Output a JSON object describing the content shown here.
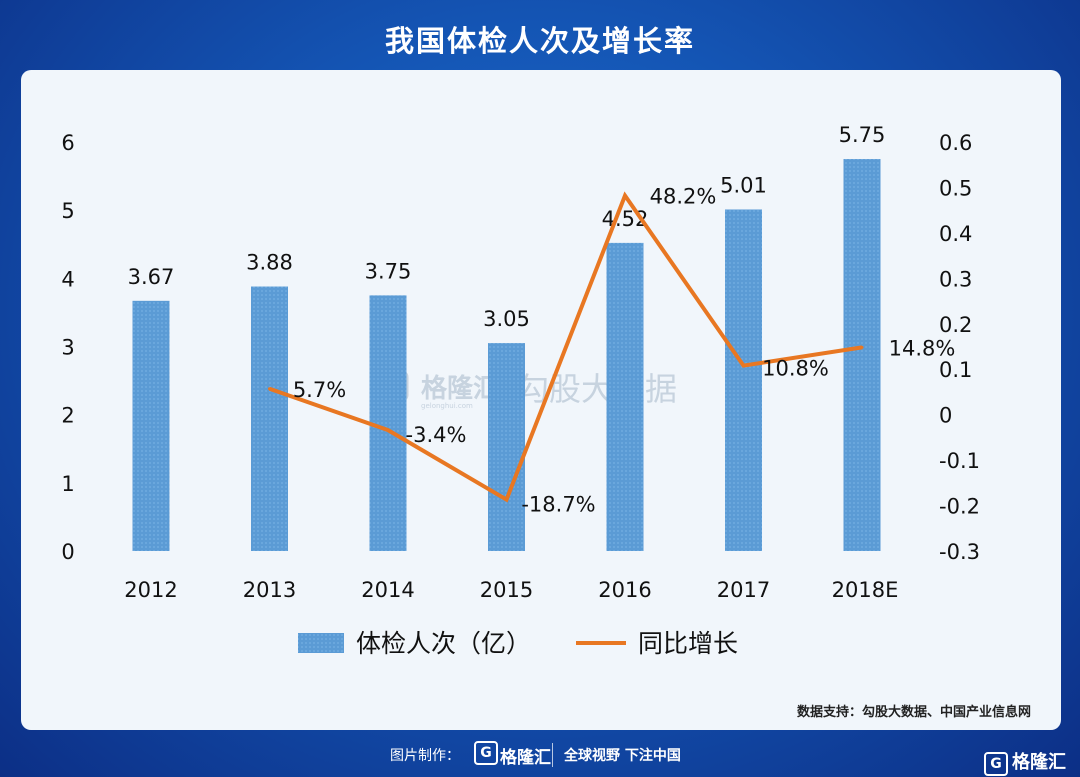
{
  "title": "我国体检人次及增长率",
  "source": "数据支持：勾股大数据、中国产业信息网",
  "watermark": {
    "brand": "格隆汇",
    "sub": "勾股大数据",
    "url": "gelonghui.com"
  },
  "footer": {
    "made_by": "图片制作：",
    "logo_glyph": "G",
    "brand": "格隆汇",
    "slogan": "全球视野 下注中国",
    "corner_brand": "格隆汇"
  },
  "colors": {
    "bar": "#5b9bd5",
    "line": "#e87722",
    "accent": "#1454b3"
  },
  "chart_data": {
    "type": "bar",
    "categories": [
      "2012",
      "2013",
      "2014",
      "2015",
      "2016",
      "2017",
      "2018E"
    ],
    "series": [
      {
        "name": "体检人次（亿）",
        "type": "bar",
        "axis": "left",
        "values": [
          3.67,
          3.88,
          3.75,
          3.05,
          4.52,
          5.01,
          5.75
        ],
        "labels": [
          "3.67",
          "3.88",
          "3.75",
          "3.05",
          "4.52",
          "5.01",
          "5.75"
        ]
      },
      {
        "name": "同比增长",
        "type": "line",
        "axis": "right",
        "values": [
          null,
          0.057,
          -0.034,
          -0.187,
          0.482,
          0.108,
          0.148
        ],
        "labels": [
          "",
          "5.7%",
          "-3.4%",
          "-18.7%",
          "48.2%",
          "10.8%",
          "14.8%"
        ]
      }
    ],
    "y_left": {
      "ylim": [
        0,
        6
      ],
      "ticks": [
        "0",
        "1",
        "2",
        "3",
        "4",
        "5",
        "6"
      ]
    },
    "y_right": {
      "ylim": [
        -0.3,
        0.6
      ],
      "ticks": [
        "-0.3",
        "-0.2",
        "-0.1",
        "0",
        "0.1",
        "0.2",
        "0.3",
        "0.4",
        "0.5",
        "0.6"
      ]
    },
    "legend": "bottom",
    "grid": false
  }
}
